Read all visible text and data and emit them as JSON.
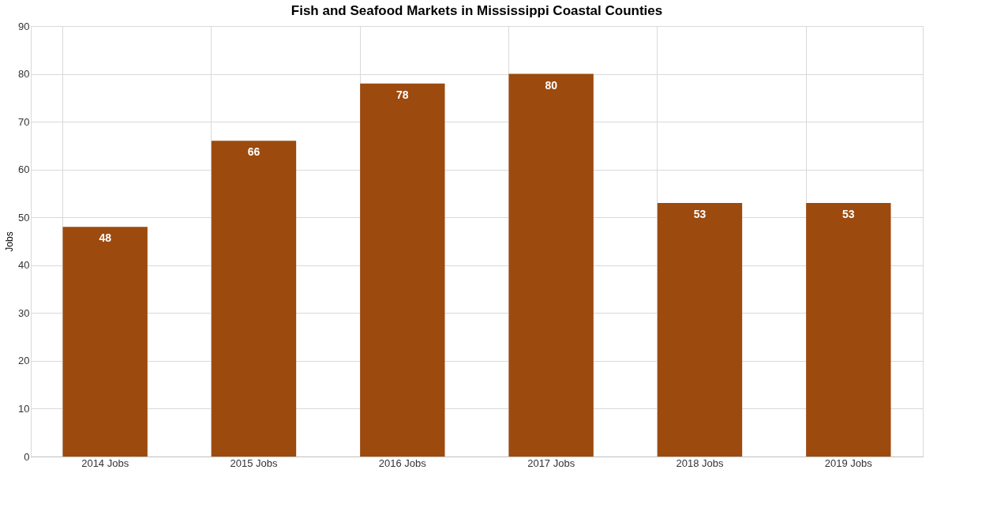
{
  "chart_data": {
    "type": "bar",
    "title": "Fish and Seafood Markets in Mississippi  Coastal Counties",
    "ylabel": "Jobs",
    "categories": [
      "2014 Jobs",
      "2015 Jobs",
      "2016 Jobs",
      "2017 Jobs",
      "2018 Jobs",
      "2019 Jobs"
    ],
    "values": [
      48,
      66,
      78,
      80,
      53,
      53
    ],
    "color": "#9c4a0e",
    "ylim": [
      0,
      90
    ],
    "yticks": [
      0,
      10,
      20,
      30,
      40,
      50,
      60,
      70,
      80,
      90
    ],
    "grid": true,
    "data_labels": true
  }
}
